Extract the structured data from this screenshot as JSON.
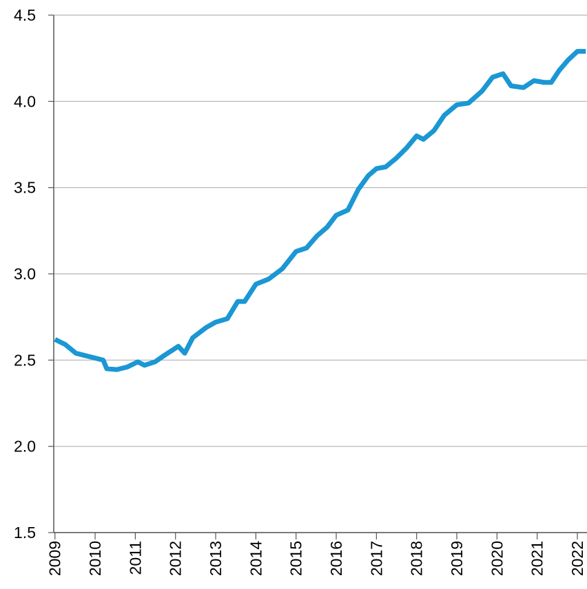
{
  "chart_data": {
    "type": "line",
    "x": [
      2009.0,
      2009.26,
      2009.52,
      2009.69,
      2010.03,
      2010.2,
      2010.29,
      2010.54,
      2010.8,
      2011.06,
      2011.23,
      2011.49,
      2011.74,
      2012.07,
      2012.23,
      2012.43,
      2012.77,
      2013.0,
      2013.29,
      2013.55,
      2013.72,
      2014.0,
      2014.32,
      2014.66,
      2015.0,
      2015.26,
      2015.52,
      2015.77,
      2016.0,
      2016.29,
      2016.55,
      2016.8,
      2017.0,
      2017.23,
      2017.49,
      2017.75,
      2018.0,
      2018.17,
      2018.43,
      2018.69,
      2019.0,
      2019.29,
      2019.63,
      2019.89,
      2020.15,
      2020.35,
      2020.66,
      2020.92,
      2021.17,
      2021.35,
      2021.55,
      2021.77,
      2022.0,
      2022.21
    ],
    "series": [
      {
        "color": "#1b97d4",
        "values": [
          2.62,
          2.59,
          2.54,
          2.53,
          2.51,
          2.5,
          2.45,
          2.445,
          2.46,
          2.49,
          2.47,
          2.49,
          2.53,
          2.58,
          2.54,
          2.63,
          2.69,
          2.72,
          2.74,
          2.84,
          2.84,
          2.94,
          2.97,
          3.03,
          3.13,
          3.15,
          3.22,
          3.27,
          3.34,
          3.37,
          3.49,
          3.57,
          3.61,
          3.62,
          3.67,
          3.73,
          3.8,
          3.78,
          3.83,
          3.92,
          3.98,
          3.99,
          4.06,
          4.14,
          4.16,
          4.09,
          4.08,
          4.12,
          4.11,
          4.11,
          4.18,
          4.24,
          4.29,
          4.29
        ]
      }
    ],
    "xlim": [
      2008.97,
      2022.24
    ],
    "xticks": [
      2009,
      2010,
      2011,
      2012,
      2013,
      2014,
      2015,
      2016,
      2017,
      2018,
      2019,
      2020,
      2021,
      2022
    ],
    "ylim": [
      1.5,
      4.5
    ],
    "yticks": [
      {
        "value": 1.5,
        "label": "1.5"
      },
      {
        "value": 2,
        "label": "2.0"
      },
      {
        "value": 2.5,
        "label": "2.5"
      },
      {
        "value": 3,
        "label": "3.0"
      },
      {
        "value": 3.5,
        "label": "3.5"
      },
      {
        "value": 4,
        "label": "4.0"
      },
      {
        "value": 4.5,
        "label": "4.5"
      }
    ],
    "grid": true
  }
}
